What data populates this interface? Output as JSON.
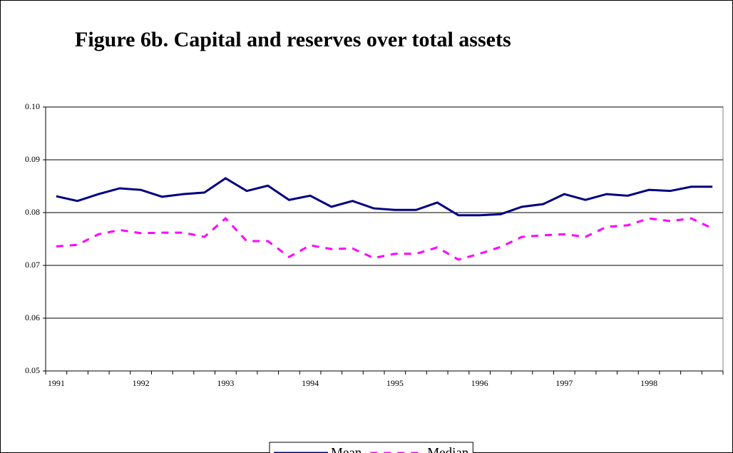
{
  "chart_data": {
    "type": "line",
    "title": "Figure 6b. Capital and reserves over total assets",
    "categories": [
      "1991",
      null,
      null,
      null,
      "1992",
      null,
      null,
      null,
      "1993",
      null,
      null,
      null,
      "1994",
      null,
      null,
      null,
      "1995",
      null,
      null,
      null,
      "1996",
      null,
      null,
      null,
      "1997",
      null,
      null,
      null,
      "1998",
      null,
      null,
      null
    ],
    "series": [
      {
        "name": "Mean",
        "color": "#000080",
        "dash": false,
        "values": [
          0.0831,
          0.0822,
          0.0835,
          0.0846,
          0.0843,
          0.083,
          0.0835,
          0.0838,
          0.0865,
          0.0841,
          0.0851,
          0.0824,
          0.0832,
          0.0811,
          0.0822,
          0.0808,
          0.0805,
          0.0805,
          0.0819,
          0.0795,
          0.0795,
          0.0797,
          0.0811,
          0.0816,
          0.0835,
          0.0824,
          0.0835,
          0.0832,
          0.0843,
          0.0841,
          0.0849,
          0.0849
        ]
      },
      {
        "name": "Median",
        "color": "#ff00ff",
        "dash": true,
        "values": [
          0.0736,
          0.0739,
          0.0759,
          0.0767,
          0.0761,
          0.0762,
          0.0762,
          0.0754,
          0.0789,
          0.0746,
          0.0746,
          0.0716,
          0.0738,
          0.0731,
          0.0732,
          0.0714,
          0.0722,
          0.0722,
          0.0734,
          0.0711,
          0.0722,
          0.0735,
          0.0754,
          0.0757,
          0.0759,
          0.0754,
          0.0773,
          0.0776,
          0.0789,
          0.0784,
          0.0789,
          0.077
        ]
      }
    ],
    "ylim": [
      0.05,
      0.1
    ],
    "yticks": [
      0.05,
      0.06,
      0.07,
      0.08,
      0.09,
      {
        "value": 0.1,
        "label": "0.10"
      }
    ],
    "grid": true,
    "legend": "bottom"
  }
}
